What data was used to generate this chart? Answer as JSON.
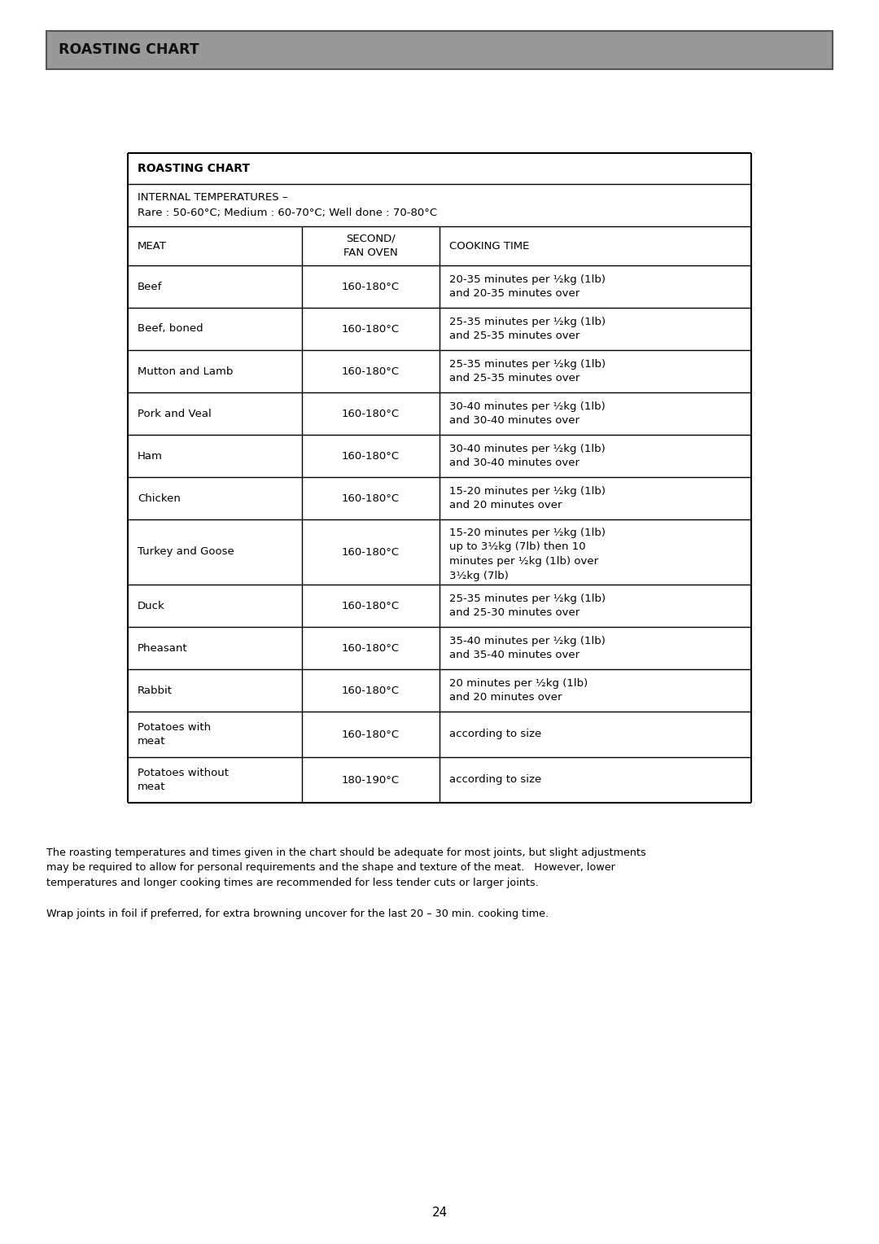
{
  "page_title": "ROASTING CHART",
  "page_title_bg": "#999999",
  "page_number": "24",
  "table_title": "ROASTING CHART",
  "internal_temp_line1": "INTERNAL TEMPERATURES –",
  "internal_temp_line2": "Rare : 50-60°C; Medium : 60-70°C; Well done : 70-80°C",
  "col_headers": [
    "MEAT",
    "SECOND/\nFAN OVEN",
    "COOKING TIME"
  ],
  "rows": [
    {
      "meat": "Beef",
      "temp": "160-180°C",
      "time": "20-35 minutes per ½kg (1lb)\nand 20-35 minutes over"
    },
    {
      "meat": "Beef, boned",
      "temp": "160-180°C",
      "time": "25-35 minutes per ½kg (1lb)\nand 25-35 minutes over"
    },
    {
      "meat": "Mutton and Lamb",
      "temp": "160-180°C",
      "time": "25-35 minutes per ½kg (1lb)\nand 25-35 minutes over"
    },
    {
      "meat": "Pork and Veal",
      "temp": "160-180°C",
      "time": "30-40 minutes per ½kg (1lb)\nand 30-40 minutes over"
    },
    {
      "meat": "Ham",
      "temp": "160-180°C",
      "time": "30-40 minutes per ½kg (1lb)\nand 30-40 minutes over"
    },
    {
      "meat": "Chicken",
      "temp": "160-180°C",
      "time": "15-20 minutes per ½kg (1lb)\nand 20 minutes over"
    },
    {
      "meat": "Turkey and Goose",
      "temp": "160-180°C",
      "time": "15-20 minutes per ½kg (1lb)\nup to 3½kg (7lb) then 10\nminutes per ½kg (1lb) over\n3½kg (7lb)"
    },
    {
      "meat": "Duck",
      "temp": "160-180°C",
      "time": "25-35 minutes per ½kg (1lb)\nand 25-30 minutes over"
    },
    {
      "meat": "Pheasant",
      "temp": "160-180°C",
      "time": "35-40 minutes per ½kg (1lb)\nand 35-40 minutes over"
    },
    {
      "meat": "Rabbit",
      "temp": "160-180°C",
      "time": "20 minutes per ½kg (1lb)\nand 20 minutes over"
    },
    {
      "meat": "Potatoes with\nmeat",
      "temp": "160-180°C",
      "time": "according to size"
    },
    {
      "meat": "Potatoes without\nmeat",
      "temp": "180-190°C",
      "time": "according to size"
    }
  ],
  "footer_text1": "The roasting temperatures and times given in the chart should be adequate for most joints, but slight adjustments\nmay be required to allow for personal requirements and the shape and texture of the meat.   However, lower\ntemperatures and longer cooking times are recommended for less tender cuts or larger joints.",
  "footer_text2": "Wrap joints in foil if preferred, for extra browning uncover for the last 20 – 30 min. cooking time.",
  "bg_color": "#ffffff",
  "text_color": "#000000"
}
